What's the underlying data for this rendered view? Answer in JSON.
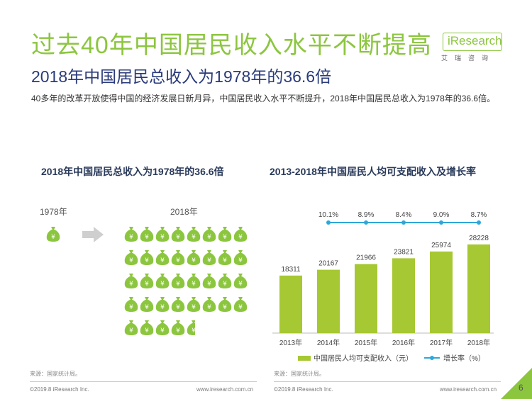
{
  "header": {
    "title": "过去40年中国居民收入水平不断提高",
    "subtitle": "2018年中国居民总收入为1978年的36.6倍",
    "description": "40多年的改革开放使得中国的经济发展日新月异，中国居民收入水平不断提升，2018年中国居民总收入为1978年的36.6倍。"
  },
  "logo": {
    "text": "iResearch",
    "cn": "艾瑞咨询"
  },
  "left_panel": {
    "title": "2018年中国居民总收入为1978年的36.6倍",
    "label_1978": "1978年",
    "label_2018": "2018年",
    "bags_1978": 1,
    "bags_2018": 36.6,
    "source": "来源：国家统计局。",
    "footer": "©2019.8 iResearch Inc.",
    "footer_url": "www.iresearch.com.cn"
  },
  "right_panel": {
    "source": "来源：国家统计局。",
    "footer": "©2019.8 iResearch Inc.",
    "footer_url": "www.iresearch.com.cn"
  },
  "page_number": "6",
  "colors": {
    "green": "#8cc63f",
    "cyan": "#2ea7d9",
    "navy": "#2a3a7a"
  },
  "chart_data": {
    "type": "bar",
    "title": "2013-2018年中国居民人均可支配收入及增长率",
    "categories": [
      "2013年",
      "2014年",
      "2015年",
      "2016年",
      "2017年",
      "2018年"
    ],
    "series": [
      {
        "name": "中国居民人均可支配收入（元）",
        "type": "bar",
        "values": [
          18311,
          20167,
          21966,
          23821,
          25974,
          28228
        ]
      },
      {
        "name": "增长率（%）",
        "type": "line",
        "values": [
          null,
          10.1,
          8.9,
          8.4,
          9.0,
          8.7
        ],
        "labels": [
          "",
          "10.1%",
          "8.9%",
          "8.4%",
          "9.0%",
          "8.7%"
        ]
      }
    ],
    "ylim": [
      0,
      30000
    ]
  }
}
